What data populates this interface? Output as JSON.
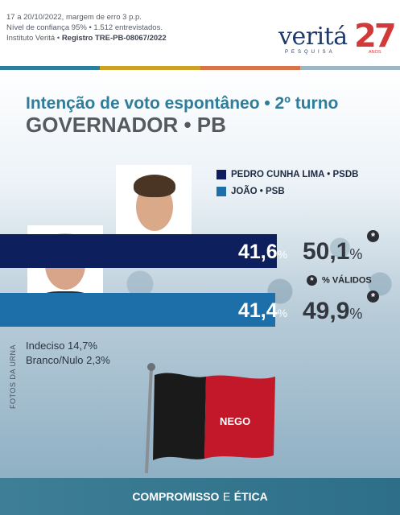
{
  "header": {
    "meta_line1": "17 a 20/10/2022, margem de erro 3 p.p.",
    "meta_line2": "Nível de confiança 95% • 1.512 entrevistados.",
    "meta_line3_prefix": "Instituto Veritá • ",
    "meta_line3_bold": "Registro TRE-PB-08067/2022",
    "logo_word": "veritá",
    "logo_sub": "PESQUISA",
    "logo_number": "27",
    "logo_anos": "ANOS"
  },
  "colors": {
    "pedro_series": "#0d1f5c",
    "joao_series": "#1c6fa8",
    "title_teal": "#2e7d9a",
    "accent": [
      "#2e7d9a",
      "#c9a227",
      "#d9734a",
      "#9fb7c5"
    ]
  },
  "title": {
    "line1": "Intenção de voto espontâneo • 2º turno",
    "line2": "GOVERNADOR • PB"
  },
  "chart_data": {
    "type": "bar",
    "orientation": "horizontal",
    "categories": [
      "PEDRO CUNHA LIMA • PSDB",
      "JOÃO • PSB"
    ],
    "series": [
      {
        "name": "",
        "values": [
          41.6,
          41.4
        ]
      },
      {
        "name": "% VÁLIDOS",
        "values": [
          50.1,
          49.9
        ]
      }
    ],
    "value_labels": [
      "41,6",
      "41,4"
    ],
    "valid_labels": [
      "50,1",
      "49,9"
    ],
    "unit": "%",
    "valid_marker": "*",
    "valid_caption": "% VÁLIDOS",
    "legend_position": "top-right",
    "xlim": [
      0,
      55
    ]
  },
  "others": {
    "indeciso": "Indeciso 14,7%",
    "branco_nulo": "Branco/Nulo 2,3%"
  },
  "photo_credit": "FOTOS DA URNA",
  "flag": {
    "text": "NEGO",
    "colors": [
      "#1a1a1a",
      "#c2182a"
    ]
  },
  "footer": {
    "part1": "COMPROMISSO",
    "part2": "E",
    "part3": "ÉTICA"
  }
}
